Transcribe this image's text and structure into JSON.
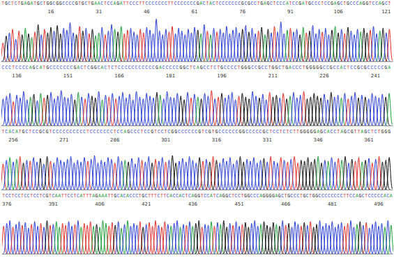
{
  "chart_data": [
    {
      "type": "chromatogram",
      "first_position": 1,
      "xlim": [
        0.5,
        123
      ],
      "xticks": [
        16,
        31,
        46,
        61,
        76,
        91,
        106,
        121
      ],
      "ylim": [
        0,
        100
      ],
      "tick_labels": "x",
      "series": [
        {
          "name": "A",
          "color": "#1f9e3a"
        },
        {
          "name": "C",
          "color": "#2b3fd4"
        },
        {
          "name": "G",
          "color": "#111111"
        },
        {
          "name": "T",
          "color": "#e0302a"
        }
      ],
      "sequence": "TGCTCTGAGATGCTGGCGGCCCCGTGCTGAACTCCAGATTCCCTTCCCCCCCTTCCCCCCCGACTACTCCCCCCCGCGCCTGAGCTCCCATCCGATGCCCTCCGAGCTGCCCAGGTCCAGCT",
      "heights": [
        40,
        55,
        62,
        70,
        48,
        66,
        58,
        72,
        60,
        52,
        64,
        80,
        58,
        70,
        62,
        74,
        66,
        78,
        60,
        72,
        68,
        84,
        62,
        58,
        76,
        66,
        72,
        60,
        70,
        56,
        62,
        74,
        58,
        66,
        80,
        70,
        64,
        76,
        60,
        68,
        72,
        64,
        58,
        70,
        62,
        74,
        68,
        60,
        92,
        66,
        58,
        70,
        64,
        76,
        60,
        72,
        66,
        58,
        70,
        62,
        74,
        68,
        60,
        80,
        66,
        58,
        72,
        64,
        70,
        62,
        76,
        60,
        68,
        74,
        62,
        70,
        78,
        64,
        72,
        60,
        66,
        74,
        58,
        70,
        62,
        76,
        64,
        86,
        60,
        68,
        72,
        64,
        70,
        58,
        74,
        62,
        66,
        78,
        60,
        70,
        64,
        72,
        58,
        68,
        76,
        62,
        70,
        60,
        74,
        66,
        58,
        70,
        64,
        72,
        62,
        68,
        76,
        60,
        66,
        72,
        62,
        70
      ]
    },
    {
      "type": "chromatogram",
      "first_position": 132,
      "xlim": [
        131.5,
        246
      ],
      "xticks": [
        136,
        151,
        166,
        181,
        196,
        211,
        226,
        241
      ],
      "ylim": [
        0,
        100
      ],
      "tick_labels": "x",
      "series": [
        {
          "name": "A",
          "color": "#1f9e3a"
        },
        {
          "name": "C",
          "color": "#2b3fd4"
        },
        {
          "name": "G",
          "color": "#111111"
        },
        {
          "name": "T",
          "color": "#e0302a"
        }
      ],
      "sequence": "CCCTCCCCAGCATGCCCCCCCGACTCGGCACTCTCCCCCCCCCCCGACCCCCGGCTCAGCCTCTGCCCCTGGGCCGCCTGGCTGACCCTGGGGGCCGCCACTCCGCGCCCCCGA",
      "heights": [
        58,
        64,
        70,
        52,
        66,
        60,
        74,
        56,
        62,
        68,
        54,
        70,
        60,
        66,
        72,
        58,
        64,
        76,
        62,
        60,
        68,
        56,
        72,
        62,
        58,
        70,
        64,
        60,
        74,
        56,
        66,
        62,
        70,
        58,
        64,
        72,
        60,
        68,
        56,
        74,
        62,
        58,
        70,
        64,
        60,
        72,
        66,
        58,
        74,
        62,
        60,
        70,
        64,
        56,
        72,
        60,
        68,
        62,
        58,
        70,
        64,
        76,
        58,
        62,
        70,
        60,
        66,
        72,
        56,
        64,
        70,
        62,
        58,
        74,
        64,
        60,
        68,
        56,
        72,
        62,
        66,
        60,
        70,
        58,
        64,
        72,
        60,
        66,
        74,
        58,
        62,
        70,
        64,
        60,
        68,
        56,
        72,
        62,
        66,
        60,
        70,
        58,
        64,
        72,
        60,
        66,
        62,
        58,
        70,
        64,
        60,
        68,
        62,
        70
      ]
    },
    {
      "type": "chromatogram",
      "first_position": 253,
      "xlim": [
        252.5,
        368
      ],
      "xticks": [
        256,
        271,
        286,
        301,
        316,
        331,
        346,
        361
      ],
      "ylim": [
        0,
        100
      ],
      "tick_labels": "x",
      "series": [
        {
          "name": "A",
          "color": "#1f9e3a"
        },
        {
          "name": "C",
          "color": "#2b3fd4"
        },
        {
          "name": "G",
          "color": "#111111"
        },
        {
          "name": "T",
          "color": "#e0302a"
        }
      ],
      "sequence": "TCACATGCTCCGCGTCCCCCCCCCCTCCCCCCCTCCAGCCCTCCGTCCTCGGCCCCCCGTCGTGCCCCCCGGCCCCCGCTCCTCTCTTGGGGGAGCACCTAGCGTTAGCTCTGGG",
      "heights": [
        56,
        64,
        70,
        60,
        66,
        72,
        58,
        64,
        62,
        70,
        60,
        68,
        56,
        72,
        62,
        58,
        70,
        64,
        60,
        66,
        72,
        58,
        64,
        60,
        70,
        62,
        66,
        74,
        58,
        64,
        60,
        70,
        66,
        58,
        72,
        62,
        64,
        60,
        68,
        56,
        70,
        64,
        60,
        72,
        58,
        66,
        62,
        70,
        60,
        64,
        74,
        58,
        62,
        68,
        60,
        72,
        64,
        58,
        70,
        62,
        66,
        60,
        72,
        64,
        58,
        68,
        62,
        70,
        56,
        64,
        72,
        60,
        66,
        62,
        70,
        58,
        64,
        68,
        60,
        72,
        62,
        58,
        70,
        64,
        60,
        66,
        72,
        58,
        64,
        62,
        70,
        60,
        66,
        72,
        58,
        64,
        62,
        70,
        60,
        68,
        64,
        72,
        58,
        66,
        62,
        70,
        60,
        64,
        68,
        58,
        66,
        72,
        60,
        64,
        70
      ]
    },
    {
      "type": "chromatogram",
      "first_position": 375,
      "xlim": [
        374.5,
        500.5
      ],
      "xticks": [
        376,
        391,
        406,
        421,
        436,
        451,
        466,
        481,
        496
      ],
      "ylim": [
        0,
        100
      ],
      "tick_labels": "x",
      "series": [
        {
          "name": "A",
          "color": "#1f9e3a"
        },
        {
          "name": "C",
          "color": "#2b3fd4"
        },
        {
          "name": "G",
          "color": "#111111"
        },
        {
          "name": "T",
          "color": "#e0302a"
        }
      ],
      "sequence": "TCCTCCTCCTCCTCGTCAATTCCTCATTTAGAAATTGCACACCCTGCTTTCTTCACCACTCAGGTCCATCAGGCTCCTGGCCCAGGGGAGCTGCCCTGCTGGCCCCCCCCTTCCAGCTCCCCCACA",
      "heights": [
        60,
        66,
        72,
        58,
        64,
        70,
        62,
        68,
        56,
        64,
        70,
        60,
        66,
        58,
        72,
        62,
        64,
        70,
        58,
        66,
        62,
        70,
        60,
        64,
        72,
        58,
        66,
        62,
        70,
        60,
        64,
        58,
        72,
        66,
        60,
        68,
        62,
        70,
        56,
        64,
        72,
        60,
        66,
        62,
        70,
        58,
        64,
        68,
        60,
        72,
        62,
        58,
        70,
        64,
        60,
        66,
        72,
        58,
        64,
        62,
        70,
        60,
        66,
        72,
        58,
        64,
        62,
        70,
        60,
        68,
        64,
        72,
        58,
        66,
        62,
        70,
        60,
        64,
        68,
        58,
        66,
        72,
        60,
        64,
        70,
        62,
        58,
        68,
        64,
        60,
        72,
        62,
        66,
        58,
        70,
        64,
        60,
        68,
        62,
        70,
        58,
        64,
        72,
        60,
        66,
        62,
        70,
        58,
        64,
        68,
        60,
        66,
        72,
        58,
        64,
        70,
        62,
        68,
        56,
        64,
        70,
        60,
        66,
        58,
        72,
        62
      ]
    }
  ]
}
